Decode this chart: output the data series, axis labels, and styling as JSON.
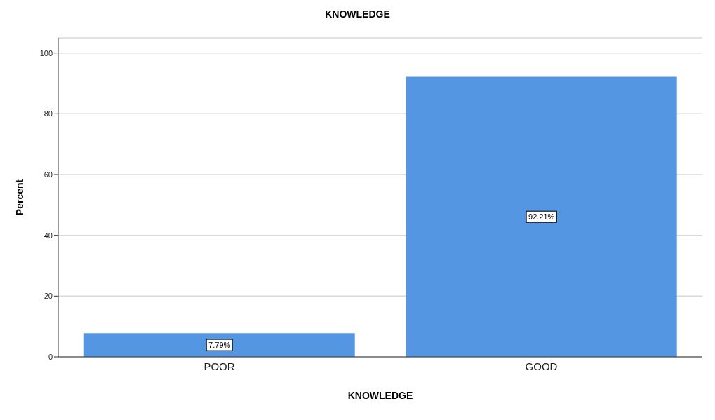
{
  "chart_data": {
    "type": "bar",
    "title": "KNOWLEDGE",
    "xlabel": "KNOWLEDGE",
    "ylabel": "Percent",
    "categories": [
      "POOR",
      "GOOD"
    ],
    "values": [
      7.79,
      92.21
    ],
    "value_labels": [
      "7.79%",
      "92.21%"
    ],
    "color": "#5596e3",
    "ylim": [
      0,
      105
    ],
    "yticks": [
      0,
      20,
      40,
      60,
      80,
      100
    ],
    "grid": "y"
  }
}
